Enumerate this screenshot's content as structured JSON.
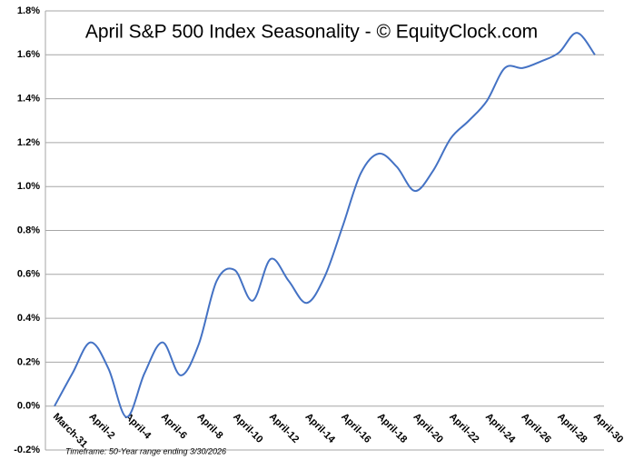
{
  "chart_data": {
    "type": "line",
    "title": "April S&P 500 Index Seasonality - © EquityClock.com",
    "footnote": "Timeframe: 50-Year range ending 3/30/2026",
    "categories": [
      "March-31",
      null,
      "April-2",
      null,
      "April-4",
      null,
      "April-6",
      null,
      "April-8",
      null,
      "April-10",
      null,
      "April-12",
      null,
      "April-14",
      null,
      "April-16",
      null,
      "April-18",
      null,
      "April-20",
      null,
      "April-22",
      null,
      "April-24",
      null,
      "April-26",
      null,
      "April-28",
      null,
      "April-30"
    ],
    "series": [
      {
        "name": "April S&P 500 Index Seasonality",
        "color": "#4472c4",
        "values": [
          0.0,
          0.15,
          0.29,
          0.17,
          -0.05,
          0.15,
          0.29,
          0.14,
          0.28,
          0.57,
          0.62,
          0.48,
          0.67,
          0.57,
          0.47,
          0.59,
          0.82,
          1.06,
          1.15,
          1.09,
          0.98,
          1.07,
          1.22,
          1.3,
          1.39,
          1.54,
          1.54,
          1.57,
          1.61,
          1.7,
          1.6
        ]
      }
    ],
    "ylim": [
      -0.2,
      1.8
    ],
    "yticks": [
      {
        "value": -0.2,
        "label": "-0.2%"
      },
      {
        "value": 0,
        "label": "0.0%"
      },
      {
        "value": 0.2,
        "label": "0.2%"
      },
      {
        "value": 0.4,
        "label": "0.4%"
      },
      {
        "value": 0.6,
        "label": "0.6%"
      },
      {
        "value": 0.8,
        "label": "0.8%"
      },
      {
        "value": 1.0,
        "label": "1.0%"
      },
      {
        "value": 1.2,
        "label": "1.2%"
      },
      {
        "value": 1.4,
        "label": "1.4%"
      },
      {
        "value": 1.6,
        "label": "1.6%"
      },
      {
        "value": 1.8,
        "label": "1.8%"
      }
    ],
    "grid": true
  }
}
